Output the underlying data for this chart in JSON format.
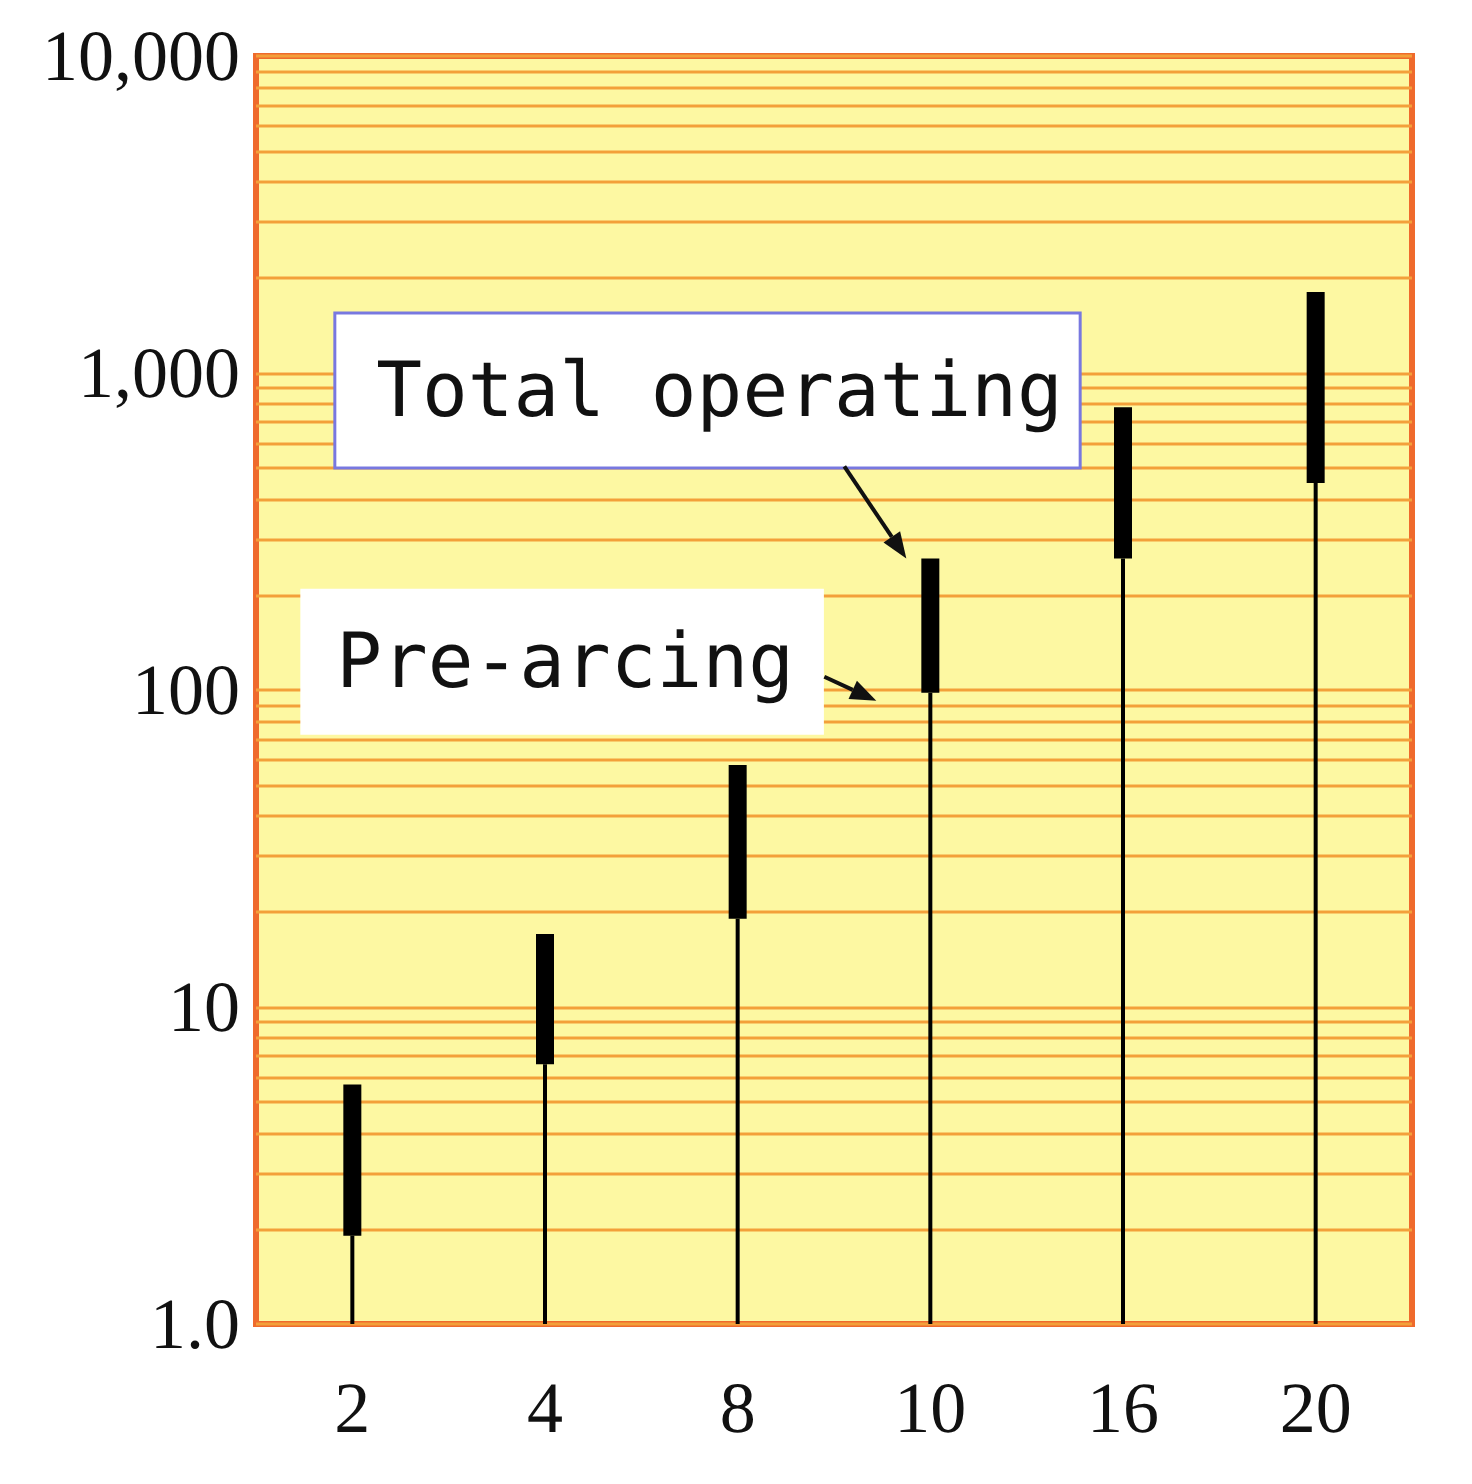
{
  "chart_data": {
    "type": "bar",
    "categories": [
      "2",
      "4",
      "8",
      "10",
      "16",
      "20"
    ],
    "series": [
      {
        "color": "#000000",
        "values": [
          1.9,
          6.6,
          19,
          98,
          260,
          450
        ]
      },
      {
        "color": "#000000",
        "base": [
          1.9,
          6.6,
          19,
          98,
          260,
          450
        ],
        "values": [
          3.8,
          10.4,
          39,
          162,
          520,
          1350
        ]
      }
    ],
    "log": "y",
    "ylim": [
      1,
      10000
    ],
    "yticks": [
      {
        "value": 1,
        "label": "1.0"
      },
      {
        "value": 2,
        "label": null
      },
      {
        "value": 3,
        "label": null
      },
      {
        "value": 4,
        "label": null
      },
      {
        "value": 5,
        "label": null
      },
      {
        "value": 6,
        "label": null
      },
      {
        "value": 7,
        "label": null
      },
      {
        "value": 8,
        "label": null
      },
      {
        "value": 9,
        "label": null
      },
      10,
      {
        "value": 20,
        "label": null
      },
      {
        "value": 30,
        "label": null
      },
      {
        "value": 40,
        "label": null
      },
      {
        "value": 50,
        "label": null
      },
      {
        "value": 60,
        "label": null
      },
      {
        "value": 70,
        "label": null
      },
      {
        "value": 80,
        "label": null
      },
      {
        "value": 90,
        "label": null
      },
      100,
      {
        "value": 200,
        "label": null
      },
      {
        "value": 300,
        "label": null
      },
      {
        "value": 400,
        "label": null
      },
      {
        "value": 500,
        "label": null
      },
      {
        "value": 600,
        "label": null
      },
      {
        "value": 700,
        "label": null
      },
      {
        "value": 800,
        "label": null
      },
      {
        "value": 900,
        "label": null
      },
      {
        "value": 1000,
        "label": "1,000"
      },
      {
        "value": 2000,
        "label": null
      },
      {
        "value": 3000,
        "label": null
      },
      {
        "value": 4000,
        "label": null
      },
      {
        "value": 5000,
        "label": null
      },
      {
        "value": 6000,
        "label": null
      },
      {
        "value": 7000,
        "label": null
      },
      {
        "value": 8000,
        "label": null
      },
      {
        "value": 9000,
        "label": null
      },
      {
        "value": 10000,
        "label": "10,000"
      }
    ],
    "grid": "y",
    "annotations": [
      {
        "text": "Total operating",
        "x": "10",
        "y": 260
      },
      {
        "text": "Pre-arcing",
        "x": "10",
        "y": 98
      }
    ]
  }
}
